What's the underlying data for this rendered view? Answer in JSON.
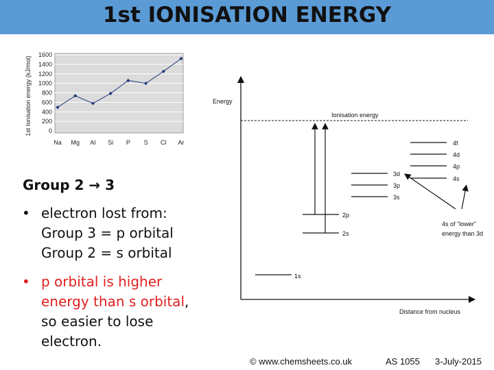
{
  "title": "1st IONISATION ENERGY",
  "chart_data": {
    "type": "line",
    "ylabel": "1st Ionisation energy (kJ/mol)",
    "categories": [
      "Na",
      "Mg",
      "Al",
      "Si",
      "P",
      "S",
      "Cl",
      "Ar"
    ],
    "values": [
      496,
      738,
      578,
      787,
      1060,
      1000,
      1251,
      1521
    ],
    "y_ticks": [
      "0",
      "200",
      "400",
      "600",
      "800",
      "1000",
      "1200",
      "1400",
      "1600"
    ],
    "ylim": [
      0,
      1600
    ],
    "grid": true
  },
  "diagram": {
    "energy_label": "Energy",
    "ionisation_label": "Ionisation energy",
    "x_axis_label": "Distance from nucleus",
    "levels": {
      "l1s": "1s",
      "l2s": "2s",
      "l2p": "2p",
      "l3s": "3s",
      "l3p": "3p",
      "l3d": "3d",
      "l4s": "4s",
      "l4p": "4p",
      "l4d": "4d",
      "l4f": "4f"
    },
    "note_line1": "4s of \"lower\"",
    "note_line2": "energy than 3d"
  },
  "text": {
    "heading": "Group 2 → 3",
    "b1_l1": "electron lost from:",
    "b1_l2": "Group 3 = p orbital",
    "b1_l3": "Group 2 = s orbital",
    "b2_l1": "p orbital is higher",
    "b2_l2a": "energy than s orbital",
    "b2_l2b": ",",
    "b2_l3": "so easier to lose",
    "b2_l4": "electron.",
    "bullet": "•"
  },
  "footer": {
    "source": "© www.chemsheets.co.uk",
    "code": "AS 1055",
    "date": "3-July-2015"
  }
}
